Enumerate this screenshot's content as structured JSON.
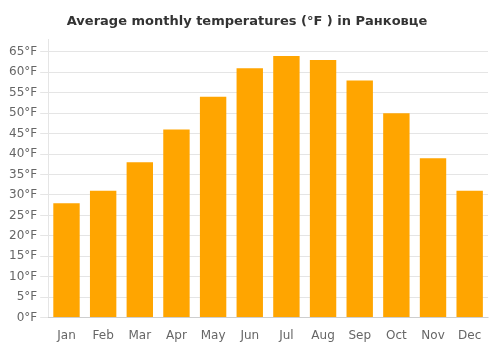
{
  "chart_data": {
    "type": "bar",
    "title": "Average monthly temperatures (°F ) in Ранковце",
    "categories": [
      "Jan",
      "Feb",
      "Mar",
      "Apr",
      "May",
      "Jun",
      "Jul",
      "Aug",
      "Sep",
      "Oct",
      "Nov",
      "Dec"
    ],
    "values": [
      28,
      31,
      38,
      46,
      54,
      61,
      64,
      63,
      58,
      50,
      39,
      31
    ],
    "color": "#FFA500",
    "ylim": [
      0,
      68
    ],
    "yticks": [
      {
        "value": 0,
        "label": "0°F"
      },
      {
        "value": 5,
        "label": "5°F"
      },
      {
        "value": 10,
        "label": "10°F"
      },
      {
        "value": 15,
        "label": "15°F"
      },
      {
        "value": 20,
        "label": "20°F"
      },
      {
        "value": 25,
        "label": "25°F"
      },
      {
        "value": 30,
        "label": "30°F"
      },
      {
        "value": 35,
        "label": "35°F"
      },
      {
        "value": 40,
        "label": "40°F"
      },
      {
        "value": 45,
        "label": "45°F"
      },
      {
        "value": 50,
        "label": "50°F"
      },
      {
        "value": 55,
        "label": "55°F"
      },
      {
        "value": 60,
        "label": "60°F"
      },
      {
        "value": 65,
        "label": "65°F"
      }
    ],
    "grid": true
  }
}
